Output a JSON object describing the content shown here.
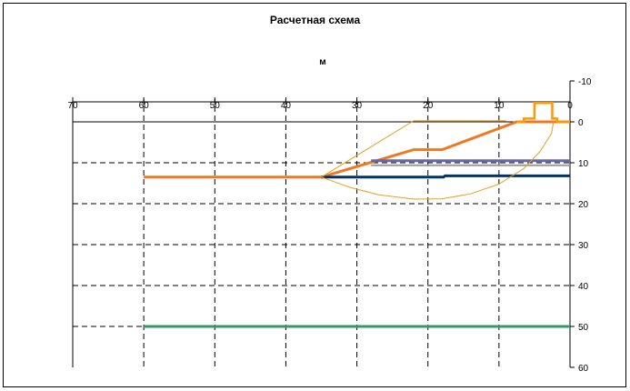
{
  "chart_data": {
    "type": "line",
    "title": "Расчетная схема",
    "xlabel": "м",
    "ylabel": "",
    "x_axis": {
      "range": [
        70,
        0
      ],
      "reversed": true,
      "position": "top",
      "ticks": [
        70,
        60,
        50,
        40,
        30,
        20,
        10,
        0
      ]
    },
    "y_axis": {
      "range": [
        -10,
        60
      ],
      "reversed": true,
      "position": "right",
      "ticks": [
        -10,
        0,
        10,
        20,
        30,
        40,
        50,
        60
      ]
    },
    "grid": true,
    "legend": "none",
    "colors": {
      "ground_surface": "#f07820",
      "water_table": "#6666aa",
      "layer_boundary": "#999999",
      "bedrock_top": "#003366",
      "deep_boundary": "#339966",
      "structure": "#ff9900",
      "slip_surface": "#e8a020",
      "grid": "#000000"
    },
    "series": [
      {
        "key": "ground_surface",
        "x": [
          60,
          35,
          22,
          18,
          7.5,
          0
        ],
        "y": [
          13.5,
          13.5,
          6.8,
          6.8,
          0,
          0
        ]
      },
      {
        "key": "water_table",
        "x": [
          28,
          0
        ],
        "y": [
          9.5,
          9.5
        ]
      },
      {
        "key": "layer_boundary",
        "x": [
          28,
          0
        ],
        "y": [
          10.6,
          10.6
        ]
      },
      {
        "key": "bedrock_top",
        "x": [
          35,
          17.8,
          17.6,
          0
        ],
        "y": [
          13.5,
          13.5,
          13.2,
          13.2
        ]
      },
      {
        "key": "deep_boundary",
        "x": [
          60,
          0
        ],
        "y": [
          50,
          50
        ]
      },
      {
        "key": "structure",
        "x": [
          7.5,
          6.5,
          6.5,
          5,
          5,
          2.5,
          2.5,
          1.8,
          1.8,
          0
        ],
        "y": [
          0,
          0,
          -0.8,
          -0.8,
          -4.6,
          -4.6,
          -0.8,
          -0.8,
          0,
          0
        ]
      },
      {
        "key": "slip_surface_arc",
        "x": [
          35,
          31,
          27,
          22,
          18,
          14,
          10,
          6.5,
          4.2,
          2.6,
          2.3
        ],
        "y": [
          13.5,
          16.0,
          17.8,
          18.9,
          18.8,
          17.6,
          15.2,
          11.4,
          7.2,
          2.8,
          -0.2
        ]
      },
      {
        "key": "slip_surface_chord",
        "x": [
          35,
          22,
          9
        ],
        "y": [
          13.5,
          -0.3,
          -0.3
        ]
      }
    ]
  }
}
